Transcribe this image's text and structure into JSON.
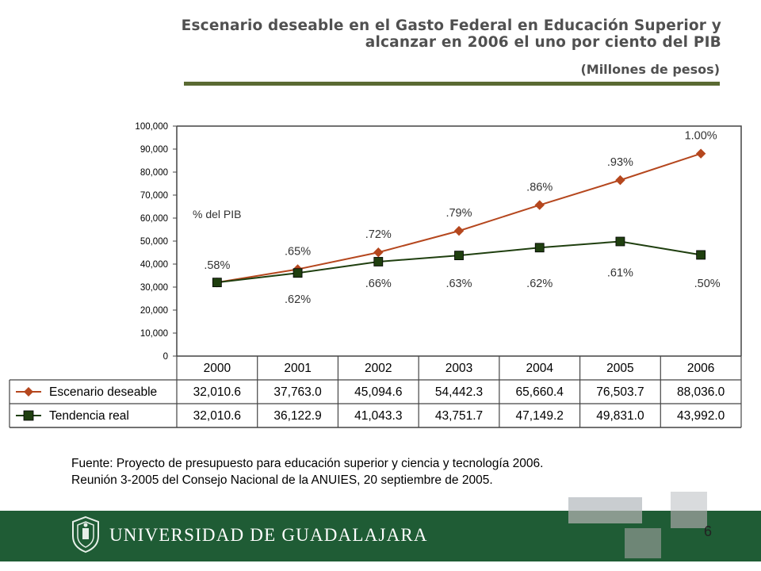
{
  "slide": {
    "title_line1": "Escenario deseable en el Gasto Federal en Educación Superior y",
    "title_line2": "alcanzar en 2006 el uno por ciento del PIB",
    "subtitle": "(Millones de pesos)",
    "source_line1": "Fuente: Proyecto de presupuesto para educación superior y ciencia y tecnología 2006.",
    "source_line2": "Reunión 3-2005 del Consejo Nacional de la ANUIES, 20 septiembre de 2005.",
    "footer_name": "UNIVERSIDAD DE GUADALAJARA",
    "page_number": "6"
  },
  "colors": {
    "deseable": "#b5471e",
    "real": "#1f3f0f",
    "footer": "#1f5c35",
    "rule": "#5a6a32"
  },
  "chart_data": {
    "type": "line",
    "title": "Escenario deseable en el Gasto Federal en Educación Superior y alcanzar en 2006 el uno por ciento del PIB",
    "subtitle": "(Millones de pesos)",
    "annotation": "% del PIB",
    "categories": [
      "2000",
      "2001",
      "2002",
      "2003",
      "2004",
      "2005",
      "2006"
    ],
    "ylim": [
      0,
      100000
    ],
    "yticks": [
      0,
      10000,
      20000,
      30000,
      40000,
      50000,
      60000,
      70000,
      80000,
      90000,
      100000
    ],
    "ytick_labels": [
      "0",
      "10,000",
      "20,000",
      "30,000",
      "40,000",
      "50,000",
      "60,000",
      "70,000",
      "80,000",
      "90,000",
      "100,000"
    ],
    "grid": false,
    "legend": "data-table",
    "series": [
      {
        "name": "Escenario deseable",
        "marker": "diamond",
        "values": [
          32010.6,
          37763.0,
          45094.6,
          54442.3,
          65660.4,
          76503.7,
          88036.0
        ],
        "table_labels": [
          "32,010.6",
          "37,763.0",
          "45,094.6",
          "54,442.3",
          "65,660.4",
          "76,503.7",
          "88,036.0"
        ],
        "pct_labels": [
          ".58%",
          ".65%",
          ".72%",
          ".79%",
          ".86%",
          ".93%",
          "1.00%"
        ]
      },
      {
        "name": "Tendencia real",
        "marker": "square",
        "values": [
          32010.6,
          36122.9,
          41043.3,
          43751.7,
          47149.2,
          49831.0,
          43992.0
        ],
        "table_labels": [
          "32,010.6",
          "36,122.9",
          "41,043.3",
          "43,751.7",
          "47,149.2",
          "49,831.0",
          "43,992.0"
        ],
        "pct_labels": [
          "",
          ".62%",
          ".66%",
          ".63%",
          ".62%",
          ".61%",
          ".50%"
        ]
      }
    ]
  }
}
